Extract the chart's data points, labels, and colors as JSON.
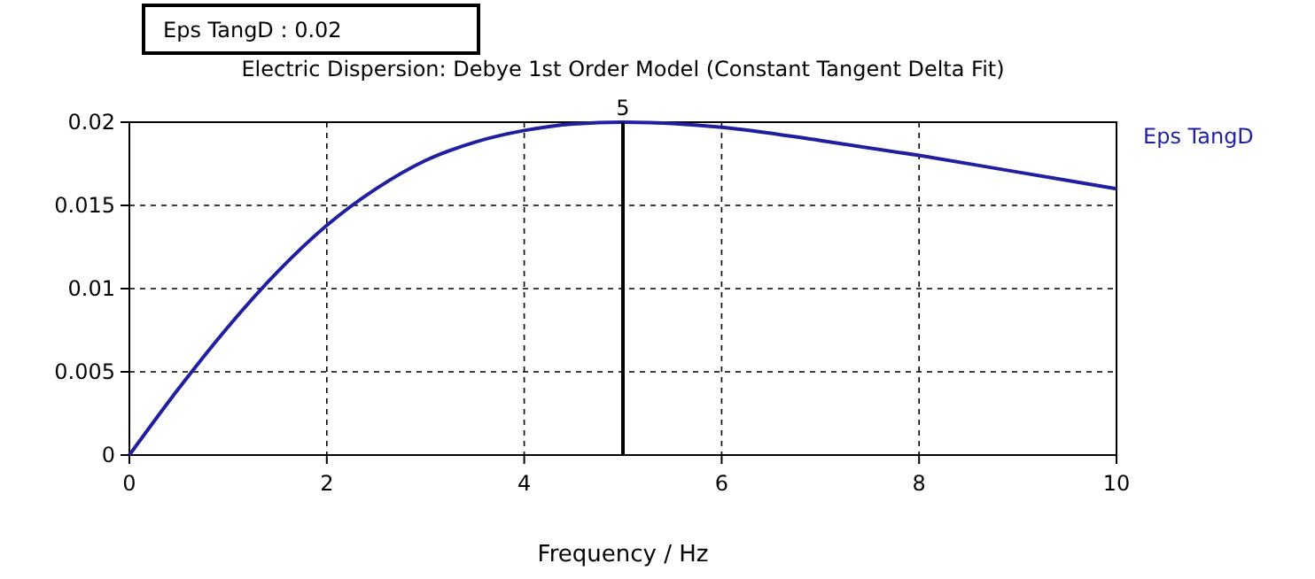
{
  "chart_data": {
    "type": "line",
    "title": "Electric Dispersion: Debye 1st Order Model (Constant Tangent Delta Fit)",
    "xlabel": "Frequency / Hz",
    "annotations": [
      "Eps TangD : 0.02"
    ],
    "x": [
      0,
      0.5,
      1,
      1.5,
      2,
      2.5,
      3,
      3.5,
      4,
      4.5,
      5,
      6,
      7,
      8,
      9,
      10
    ],
    "series": [
      {
        "name": "Eps TangD",
        "color": "#1f1f9f",
        "values": [
          0,
          0.004,
          0.0077,
          0.011,
          0.0138,
          0.016,
          0.0177,
          0.0188,
          0.0195,
          0.0199,
          0.02,
          0.0197,
          0.0189,
          0.018,
          0.017,
          0.016
        ]
      }
    ],
    "xlim": [
      0,
      10
    ],
    "xticks": [
      0,
      2,
      4,
      6,
      8,
      10
    ],
    "ylim": [
      0,
      0.02
    ],
    "yticks": [
      0,
      0.005,
      0.01,
      0.015,
      0.02
    ],
    "grid": true,
    "legend": "top right",
    "line_style": "solid",
    "marker": "none",
    "ref_lines": [
      {
        "axis": "x",
        "value": 5,
        "label": "5",
        "color": "#000000"
      }
    ]
  }
}
